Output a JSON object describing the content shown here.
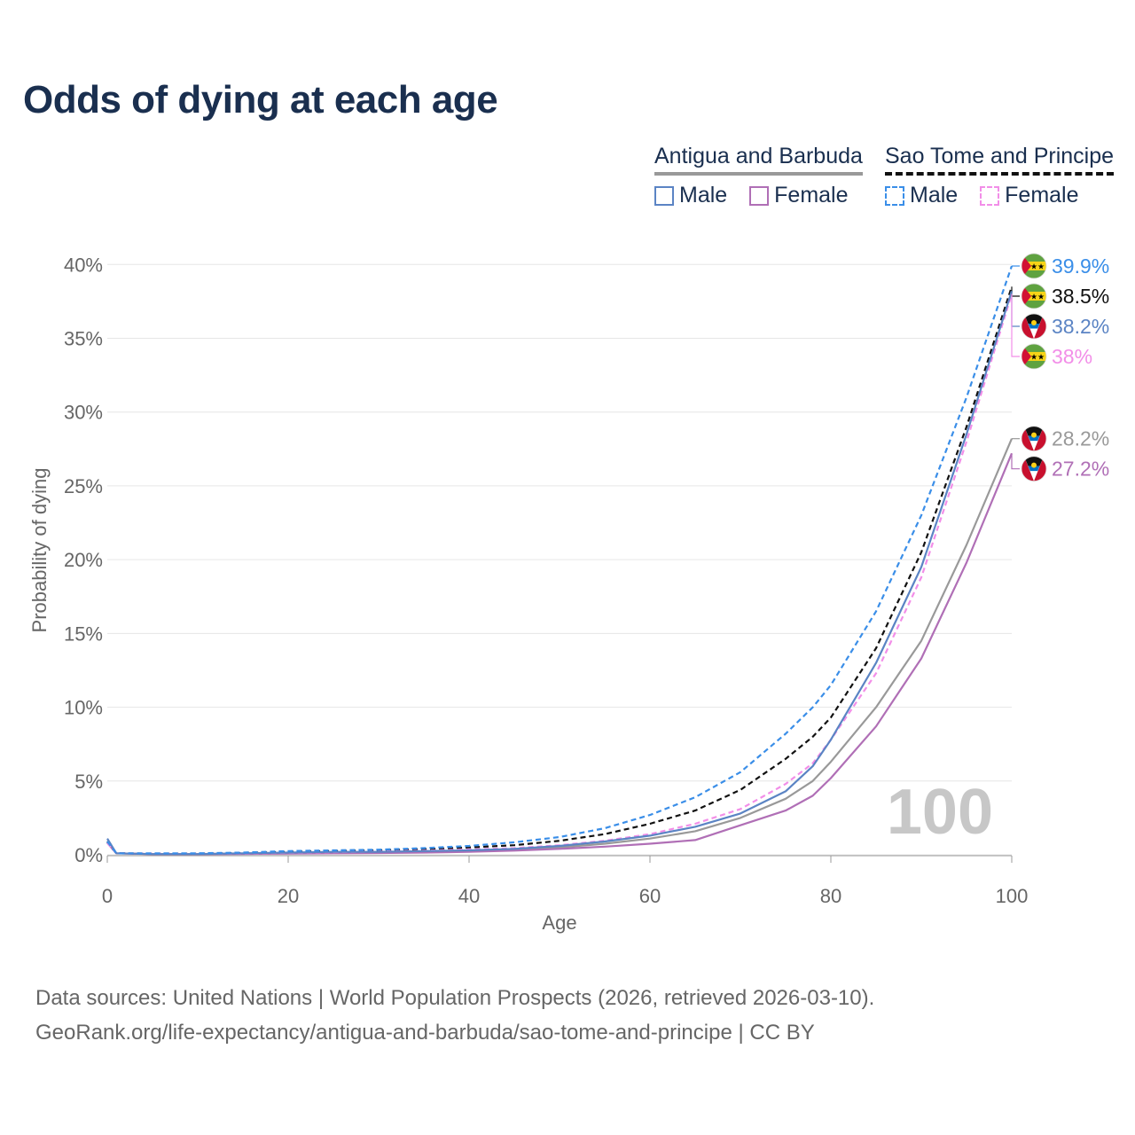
{
  "title": "Odds of dying at each age",
  "legend": {
    "group_a": {
      "title": "Antigua and Barbuda",
      "male": "Male",
      "female": "Female"
    },
    "group_b": {
      "title": "Sao Tome and Principe",
      "male": "Male",
      "female": "Female"
    }
  },
  "colors": {
    "antigua_male": "#5b84c4",
    "antigua_female": "#b06fb6",
    "antigua_total": "#999999",
    "stp_male": "#3a8ee8",
    "stp_female": "#f28ee8",
    "stp_total": "#111111"
  },
  "chart_data": {
    "type": "line",
    "title": "Odds of dying at each age",
    "xlabel": "Age",
    "ylabel": "Probability of dying",
    "xlim": [
      0,
      100
    ],
    "ylim": [
      0,
      42
    ],
    "x_ticks": [
      "0",
      "20",
      "40",
      "60",
      "80",
      "100"
    ],
    "y_ticks": [
      "0%",
      "5%",
      "10%",
      "15%",
      "20%",
      "25%",
      "30%",
      "35%",
      "40%"
    ],
    "watermark": "100",
    "x": [
      0,
      1,
      5,
      10,
      15,
      20,
      25,
      30,
      35,
      40,
      45,
      50,
      55,
      60,
      65,
      70,
      75,
      78,
      80,
      85,
      90,
      95,
      100
    ],
    "series": [
      {
        "name": "Sao Tome and Principe Male",
        "country": "Sao Tome and Principe",
        "key": "stp_male",
        "dash": "dashed",
        "end_label": "39.9%",
        "values": [
          0.9,
          0.1,
          0.1,
          0.1,
          0.15,
          0.25,
          0.3,
          0.35,
          0.45,
          0.6,
          0.85,
          1.2,
          1.8,
          2.7,
          3.9,
          5.6,
          8.2,
          10.0,
          11.5,
          16.5,
          23.0,
          31.0,
          39.9
        ]
      },
      {
        "name": "Sao Tome and Principe Total",
        "country": "Sao Tome and Principe",
        "key": "stp_total",
        "dash": "dashed",
        "end_label": "38.5%",
        "values": [
          0.85,
          0.1,
          0.08,
          0.08,
          0.12,
          0.2,
          0.25,
          0.3,
          0.38,
          0.5,
          0.65,
          0.95,
          1.4,
          2.1,
          3.0,
          4.4,
          6.5,
          8.0,
          9.3,
          14.0,
          20.5,
          29.0,
          38.5
        ]
      },
      {
        "name": "Antigua and Barbuda Male",
        "country": "Antigua and Barbuda",
        "key": "antigua_male",
        "dash": "solid",
        "end_label": "38.2%",
        "values": [
          1.1,
          0.1,
          0.05,
          0.05,
          0.1,
          0.15,
          0.2,
          0.2,
          0.25,
          0.3,
          0.4,
          0.6,
          0.9,
          1.3,
          1.9,
          2.8,
          4.3,
          6.0,
          7.8,
          13.0,
          19.5,
          28.5,
          38.2
        ]
      },
      {
        "name": "Sao Tome and Principe Female",
        "country": "Sao Tome and Principe",
        "key": "stp_female",
        "dash": "dashed",
        "end_label": "38%",
        "values": [
          0.8,
          0.1,
          0.07,
          0.06,
          0.09,
          0.14,
          0.18,
          0.22,
          0.28,
          0.36,
          0.45,
          0.65,
          0.95,
          1.4,
          2.1,
          3.1,
          4.8,
          6.2,
          7.8,
          12.3,
          18.8,
          28.0,
          38.0
        ]
      },
      {
        "name": "Antigua and Barbuda Total",
        "country": "Antigua and Barbuda",
        "key": "antigua_total",
        "dash": "solid",
        "end_label": "28.2%",
        "values": [
          0.95,
          0.1,
          0.05,
          0.05,
          0.08,
          0.12,
          0.15,
          0.18,
          0.22,
          0.28,
          0.35,
          0.5,
          0.75,
          1.1,
          1.6,
          2.5,
          3.8,
          5.0,
          6.3,
          10.0,
          14.5,
          21.0,
          28.2
        ]
      },
      {
        "name": "Antigua and Barbuda Female",
        "country": "Antigua and Barbuda",
        "key": "antigua_female",
        "dash": "solid",
        "end_label": "27.2%",
        "values": [
          0.8,
          0.1,
          0.04,
          0.04,
          0.06,
          0.08,
          0.1,
          0.12,
          0.15,
          0.2,
          0.28,
          0.4,
          0.55,
          0.75,
          1.0,
          2.0,
          3.0,
          4.0,
          5.2,
          8.7,
          13.3,
          19.8,
          27.2
        ]
      }
    ]
  },
  "source": {
    "line1": "Data sources: United Nations | World Population Prospects (2026, retrieved 2026-03-10).",
    "line2": "GeoRank.org/life-expectancy/antigua-and-barbuda/sao-tome-and-principe | CC BY"
  }
}
